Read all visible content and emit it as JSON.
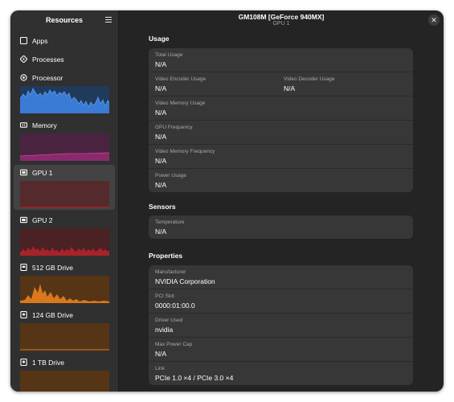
{
  "sidebar": {
    "title": "Resources",
    "nav": [
      {
        "label": "Apps",
        "icon": "apps-icon"
      },
      {
        "label": "Processes",
        "icon": "processes-icon"
      }
    ],
    "graph_items": [
      {
        "label": "Processor",
        "icon": "cpu-icon"
      },
      {
        "label": "Memory",
        "icon": "memory-icon"
      },
      {
        "label": "GPU 1",
        "icon": "gpu-icon"
      },
      {
        "label": "GPU 2",
        "icon": "gpu-icon"
      },
      {
        "label": "512 GB Drive",
        "icon": "drive-icon"
      },
      {
        "label": "124 GB Drive",
        "icon": "drive-icon"
      },
      {
        "label": "1 TB Drive",
        "icon": "drive-icon"
      }
    ]
  },
  "header": {
    "title": "GM108M [GeForce 940MX]",
    "subtitle": "GPU 1"
  },
  "usage": {
    "title": "Usage",
    "total_usage": {
      "label": "Total Usage",
      "value": "N/A"
    },
    "video_encoder": {
      "label": "Video Encoder Usage",
      "value": "N/A"
    },
    "video_decoder": {
      "label": "Video Decoder Usage",
      "value": "N/A"
    },
    "video_memory": {
      "label": "Video Memory Usage",
      "value": "N/A"
    },
    "gpu_frequency": {
      "label": "GPU Frequency",
      "value": "N/A"
    },
    "video_memory_frequency": {
      "label": "Video Memory Frequency",
      "value": "N/A"
    },
    "power_usage": {
      "label": "Power Usage",
      "value": "N/A"
    }
  },
  "sensors": {
    "title": "Sensors",
    "temperature": {
      "label": "Temperature",
      "value": "N/A"
    }
  },
  "properties": {
    "title": "Properties",
    "manufacturer": {
      "label": "Manufacturer",
      "value": "NVIDIA Corporation"
    },
    "pci_slot": {
      "label": "PCI Slot",
      "value": "0000:01:00.0"
    },
    "driver_used": {
      "label": "Driver Used",
      "value": "nvidia"
    },
    "max_power_cap": {
      "label": "Max Power Cap",
      "value": "N/A"
    },
    "link": {
      "label": "Link",
      "value": "PCIe 1.0 ×4 / PCIe 3.0 ×4"
    }
  },
  "colors": {
    "processor": "#3a7bd5",
    "memory": "#b5338a",
    "gpu": "#c0282d",
    "drive": "#d9781c"
  }
}
